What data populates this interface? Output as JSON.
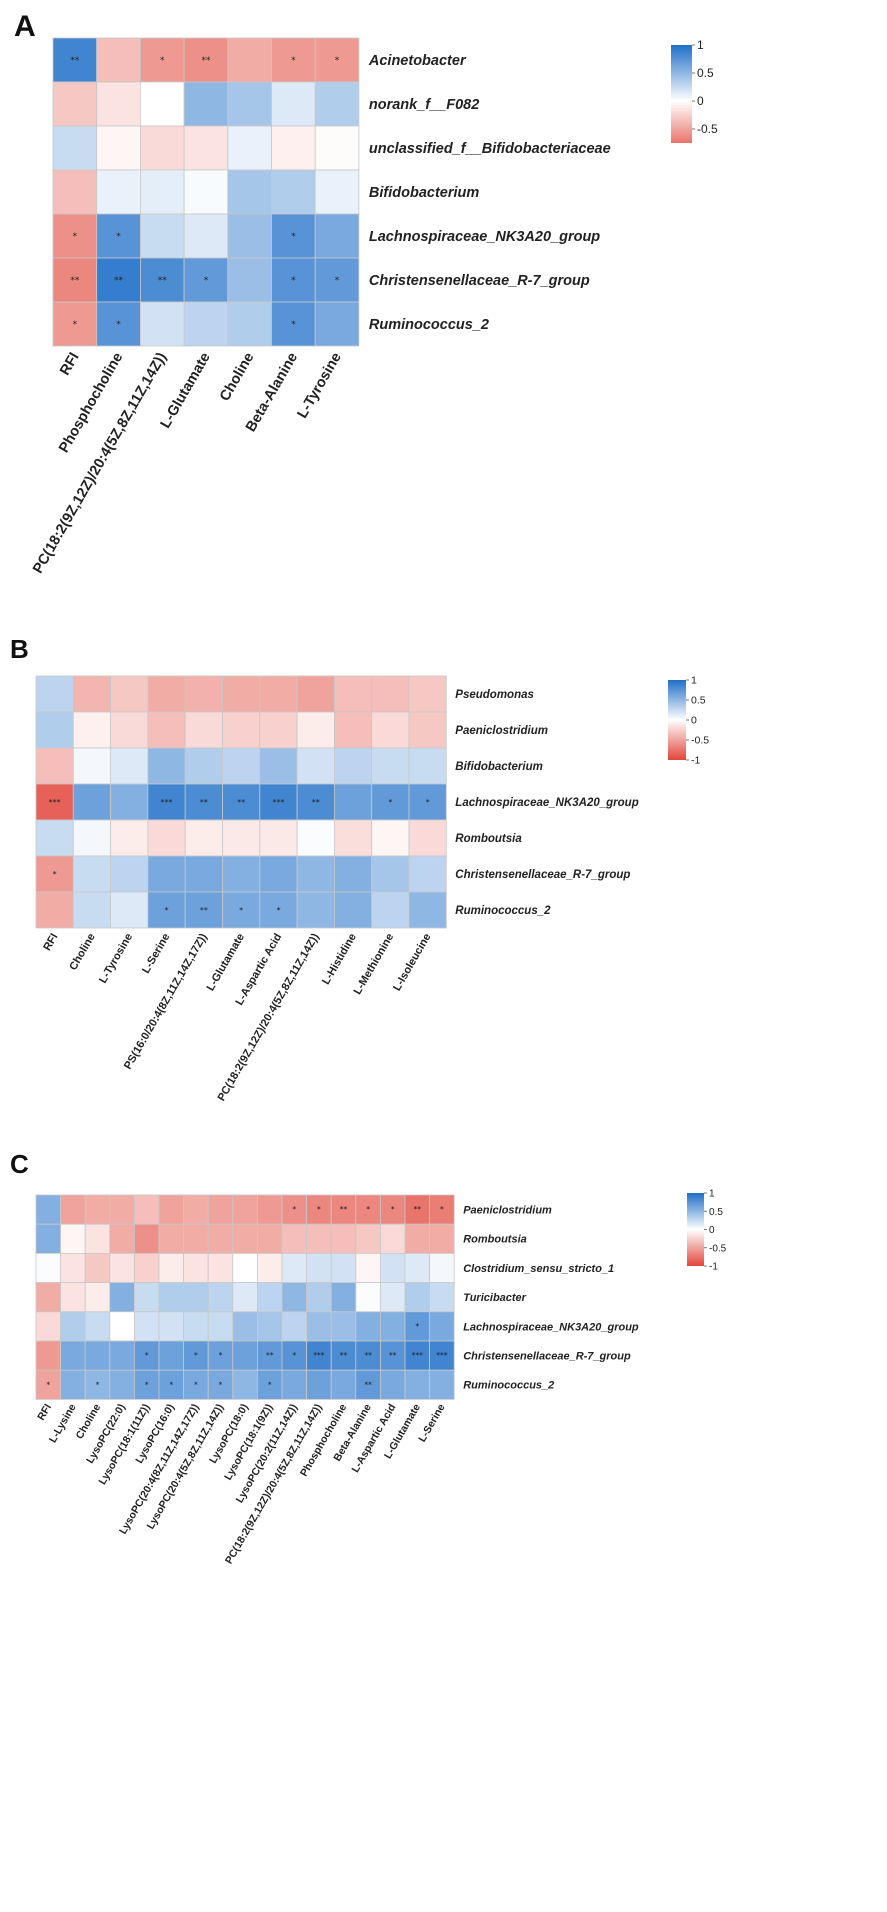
{
  "chart_data": [
    {
      "type": "heatmap",
      "panel": "A",
      "rows": [
        "Acinetobacter",
        "norank_f__F082",
        "unclassified_f__Bifidobacteriaceae",
        "Bifidobacterium",
        "Lachnospiraceae_NK3A20_group",
        "Christensenellaceae_R-7_group",
        "Ruminococcus_2"
      ],
      "columns": [
        "RFI",
        "Phosphocholine",
        "PC(18:2(9Z,12Z)/20:4(5Z,8Z,11Z,14Z))",
        "L-Glutamate",
        "Choline",
        "Beta-Alanine",
        "L-Tyrosine"
      ],
      "values": [
        [
          0.85,
          -0.35,
          -0.55,
          -0.6,
          -0.45,
          -0.55,
          -0.55
        ],
        [
          -0.3,
          -0.15,
          0.0,
          0.5,
          0.4,
          0.15,
          0.35
        ],
        [
          0.25,
          -0.05,
          -0.2,
          -0.15,
          0.1,
          -0.08,
          -0.02
        ],
        [
          -0.35,
          0.1,
          0.12,
          0.03,
          0.4,
          0.35,
          0.1
        ],
        [
          -0.6,
          0.75,
          0.25,
          0.15,
          0.45,
          0.75,
          0.6
        ],
        [
          -0.65,
          0.9,
          0.8,
          0.7,
          0.45,
          0.75,
          0.7
        ],
        [
          -0.55,
          0.75,
          0.2,
          0.3,
          0.35,
          0.75,
          0.6
        ]
      ],
      "significance": [
        [
          "**",
          "",
          "*",
          "**",
          "",
          "*",
          "*"
        ],
        [
          "",
          "",
          "",
          "",
          "",
          "",
          ""
        ],
        [
          "",
          "",
          "",
          "",
          "",
          "",
          ""
        ],
        [
          "",
          "",
          "",
          "",
          "",
          "",
          ""
        ],
        [
          "*",
          "*",
          "",
          "",
          "",
          "*",
          ""
        ],
        [
          "**",
          "**",
          "**",
          "*",
          "",
          "*",
          "*"
        ],
        [
          "*",
          "*",
          "",
          "",
          "",
          "*",
          ""
        ]
      ],
      "colorbar": {
        "min": -0.75,
        "max": 1,
        "ticks": [
          1,
          0.5,
          0,
          -0.5
        ],
        "tick_labels": [
          "1",
          "0.5",
          "0",
          "-0.5"
        ]
      }
    },
    {
      "type": "heatmap",
      "panel": "B",
      "rows": [
        "Pseudomonas",
        "Paeniclostridium",
        "Bifidobacterium",
        "Lachnospiraceae_NK3A20_group",
        "Romboutsia",
        "Christensenellaceae_R-7_group",
        "Ruminococcus_2"
      ],
      "columns": [
        "RFI",
        "Choline",
        "L-Tyrosine",
        "L-Serine",
        "PS(16:0/20:4(8Z,11Z,14Z,17Z))",
        "L-Glutamate",
        "L-Aspartic Acid",
        "PC(18:2(9Z,12Z)/20:4(5Z,8Z,11Z,14Z))",
        "L-Histidine",
        "L-Methionine",
        "L-Isoleucine"
      ],
      "values": [
        [
          0.3,
          -0.4,
          -0.3,
          -0.45,
          -0.42,
          -0.45,
          -0.45,
          -0.5,
          -0.35,
          -0.35,
          -0.3
        ],
        [
          0.35,
          -0.08,
          -0.2,
          -0.35,
          -0.2,
          -0.25,
          -0.25,
          -0.1,
          -0.35,
          -0.2,
          -0.3
        ],
        [
          -0.35,
          0.05,
          0.15,
          0.5,
          0.35,
          0.3,
          0.45,
          0.2,
          0.3,
          0.25,
          0.25
        ],
        [
          -0.85,
          0.65,
          0.55,
          0.85,
          0.8,
          0.8,
          0.85,
          0.8,
          0.65,
          0.7,
          0.7
        ],
        [
          0.25,
          0.05,
          -0.1,
          -0.2,
          -0.1,
          -0.12,
          -0.12,
          0.02,
          -0.18,
          -0.05,
          -0.2
        ],
        [
          -0.55,
          0.25,
          0.3,
          0.6,
          0.6,
          0.55,
          0.6,
          0.5,
          0.55,
          0.4,
          0.3
        ],
        [
          -0.45,
          0.25,
          0.15,
          0.65,
          0.65,
          0.6,
          0.6,
          0.5,
          0.55,
          0.3,
          0.5
        ]
      ],
      "significance": [
        [
          "",
          "",
          "",
          "",
          "",
          "",
          "",
          "",
          "",
          "",
          ""
        ],
        [
          "",
          "",
          "",
          "",
          "",
          "",
          "",
          "",
          "",
          "",
          ""
        ],
        [
          "",
          "",
          "",
          "",
          "",
          "",
          "",
          "",
          "",
          "",
          ""
        ],
        [
          "***",
          "",
          "",
          "***",
          "**",
          "**",
          "***",
          "**",
          "",
          "*",
          "*"
        ],
        [
          "",
          "",
          "",
          "",
          "",
          "",
          "",
          "",
          "",
          "",
          ""
        ],
        [
          "*",
          "",
          "",
          "",
          "",
          "",
          "",
          "",
          "",
          "",
          ""
        ],
        [
          "",
          "",
          "",
          "*",
          "**",
          "*",
          "*",
          "",
          "",
          "",
          ""
        ]
      ],
      "colorbar": {
        "min": -1,
        "max": 1,
        "ticks": [
          1,
          0.5,
          0,
          -0.5,
          -1
        ],
        "tick_labels": [
          "1",
          "0.5",
          "0",
          "-0.5",
          "-1"
        ]
      }
    },
    {
      "type": "heatmap",
      "panel": "C",
      "rows": [
        "Paeniclostridium",
        "Romboutsia",
        "Clostridium_sensu_stricto_1",
        "Turicibacter",
        "Lachnospiraceae_NK3A20_group",
        "Christensenellaceae_R-7_group",
        "Ruminococcus_2"
      ],
      "columns": [
        "RFI",
        "L-Lysine",
        "Choline",
        "LysoPC(22:0)",
        "LysoPC(18:1(11Z))",
        "LysoPC(16:0)",
        "LysoPC(20:4(8Z,11Z,14Z,17Z))",
        "LysoPC(20:4(5Z,8Z,11Z,14Z))",
        "LysoPC(18:0)",
        "LysoPC(18:1(9Z))",
        "LysoPC(20:2(11Z,14Z))",
        "PC(18:2(9Z,12Z)/20:4(5Z,8Z,11Z,14Z))",
        "Phosphocholine",
        "Beta-Alanine",
        "L-Aspartic Acid",
        "L-Glutamate",
        "L-Serine"
      ],
      "values": [
        [
          0.55,
          -0.5,
          -0.45,
          -0.45,
          -0.35,
          -0.5,
          -0.45,
          -0.5,
          -0.5,
          -0.55,
          -0.6,
          -0.65,
          -0.65,
          -0.65,
          -0.65,
          -0.75,
          -0.7
        ],
        [
          0.55,
          -0.05,
          -0.15,
          -0.45,
          -0.6,
          -0.45,
          -0.45,
          -0.45,
          -0.45,
          -0.45,
          -0.35,
          -0.35,
          -0.35,
          -0.3,
          -0.2,
          -0.45,
          -0.45
        ],
        [
          0.02,
          -0.15,
          -0.3,
          -0.15,
          -0.25,
          -0.1,
          -0.15,
          -0.15,
          0.0,
          -0.1,
          0.15,
          0.2,
          0.2,
          -0.05,
          0.2,
          0.15,
          0.05
        ],
        [
          -0.45,
          -0.15,
          -0.1,
          0.55,
          0.25,
          0.35,
          0.35,
          0.3,
          0.15,
          0.3,
          0.5,
          0.35,
          0.55,
          0.02,
          0.15,
          0.35,
          0.25
        ],
        [
          -0.2,
          0.35,
          0.25,
          0.0,
          0.2,
          0.2,
          0.25,
          0.25,
          0.45,
          0.4,
          0.3,
          0.45,
          0.45,
          0.55,
          0.55,
          0.7,
          0.6
        ],
        [
          -0.55,
          0.6,
          0.6,
          0.6,
          0.7,
          0.65,
          0.7,
          0.65,
          0.65,
          0.7,
          0.75,
          0.85,
          0.8,
          0.8,
          0.75,
          0.85,
          0.85
        ],
        [
          -0.5,
          0.55,
          0.5,
          0.55,
          0.65,
          0.65,
          0.6,
          0.6,
          0.5,
          0.65,
          0.6,
          0.65,
          0.6,
          0.7,
          0.6,
          0.55,
          0.55
        ]
      ],
      "significance": [
        [
          "",
          "",
          "",
          "",
          "",
          "",
          "",
          "",
          "",
          "",
          "*",
          "*",
          "**",
          "*",
          "*",
          "**",
          "*"
        ],
        [
          "",
          "",
          "",
          "",
          "",
          "",
          "",
          "",
          "",
          "",
          "",
          "",
          "",
          "",
          "",
          "",
          ""
        ],
        [
          "",
          "",
          "",
          "",
          "",
          "",
          "",
          "",
          "",
          "",
          "",
          "",
          "",
          "",
          "",
          "",
          ""
        ],
        [
          "",
          "",
          "",
          "",
          "",
          "",
          "",
          "",
          "",
          "",
          "",
          "",
          "",
          "",
          "",
          "",
          ""
        ],
        [
          "",
          "",
          "",
          "",
          "",
          "",
          "",
          "",
          "",
          "",
          "",
          "",
          "",
          "",
          "",
          "*",
          ""
        ],
        [
          "",
          "",
          "",
          "",
          "*",
          "",
          "*",
          "*",
          "",
          "**",
          "*",
          "***",
          "**",
          "**",
          "**",
          "***",
          "***"
        ],
        [
          "*",
          "",
          "*",
          "",
          "*",
          "*",
          "*",
          "*",
          "",
          "*",
          "",
          "",
          "",
          "**",
          "",
          "",
          ""
        ]
      ],
      "colorbar": {
        "min": -1,
        "max": 1,
        "ticks": [
          1,
          0.5,
          0,
          -0.5,
          -1
        ],
        "tick_labels": [
          "1",
          "0.5",
          "0",
          "-0.5",
          "-1"
        ]
      }
    }
  ],
  "colors": {
    "positive": "#1f6fc8",
    "neutral": "#ffffff",
    "negative": "#e1463a",
    "grid": "#c8c8c8"
  }
}
